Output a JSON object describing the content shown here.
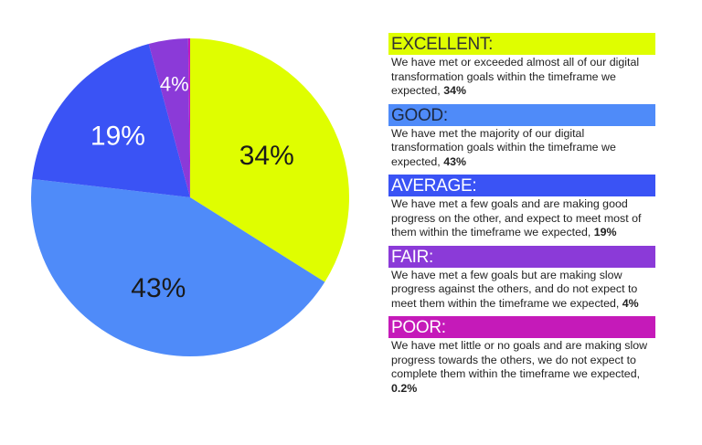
{
  "chart_data": {
    "type": "pie",
    "title": "",
    "categories": [
      "EXCELLENT",
      "GOOD",
      "AVERAGE",
      "FAIR",
      "POOR"
    ],
    "values": [
      34,
      43,
      19,
      4,
      0.2
    ],
    "value_labels": [
      "34%",
      "43%",
      "19%",
      "4%",
      ""
    ],
    "colors": [
      "#dffe00",
      "#4f8bf9",
      "#3a53f5",
      "#8b3ad8",
      "#c51ab9"
    ],
    "start_angle": "12 o'clock, clockwise",
    "legend_position": "right"
  },
  "legend": [
    {
      "label": "EXCELLENT:",
      "color": "#dffe00",
      "text_color": "#333333",
      "desc": "We have met or exceeded almost all of our digital transformation goals within the timeframe we expected, ",
      "pct": "34%"
    },
    {
      "label": "GOOD:",
      "color": "#4f8bf9",
      "text_color": "#1e2a40",
      "desc": "We have met the majority of our digital transformation goals within the timeframe we expected, ",
      "pct": "43%"
    },
    {
      "label": "AVERAGE:",
      "color": "#3a53f5",
      "text_color": "#ffffff",
      "desc": "We have met a few goals and are making good progress on the other, and expect to meet most of them within the timeframe we expected, ",
      "pct": "19%"
    },
    {
      "label": "FAIR:",
      "color": "#8b3ad8",
      "text_color": "#ffffff",
      "desc": "We have met a few goals but are making slow progress against the others, and do not expect to meet them within the timeframe we expected, ",
      "pct": "4%"
    },
    {
      "label": "POOR:",
      "color": "#c51ab9",
      "text_color": "#ffffff",
      "desc": "We have met little or no goals and are making slow progress towards the others, we do not expect to complete them within the timeframe we expected, ",
      "pct": "0.2%"
    }
  ]
}
